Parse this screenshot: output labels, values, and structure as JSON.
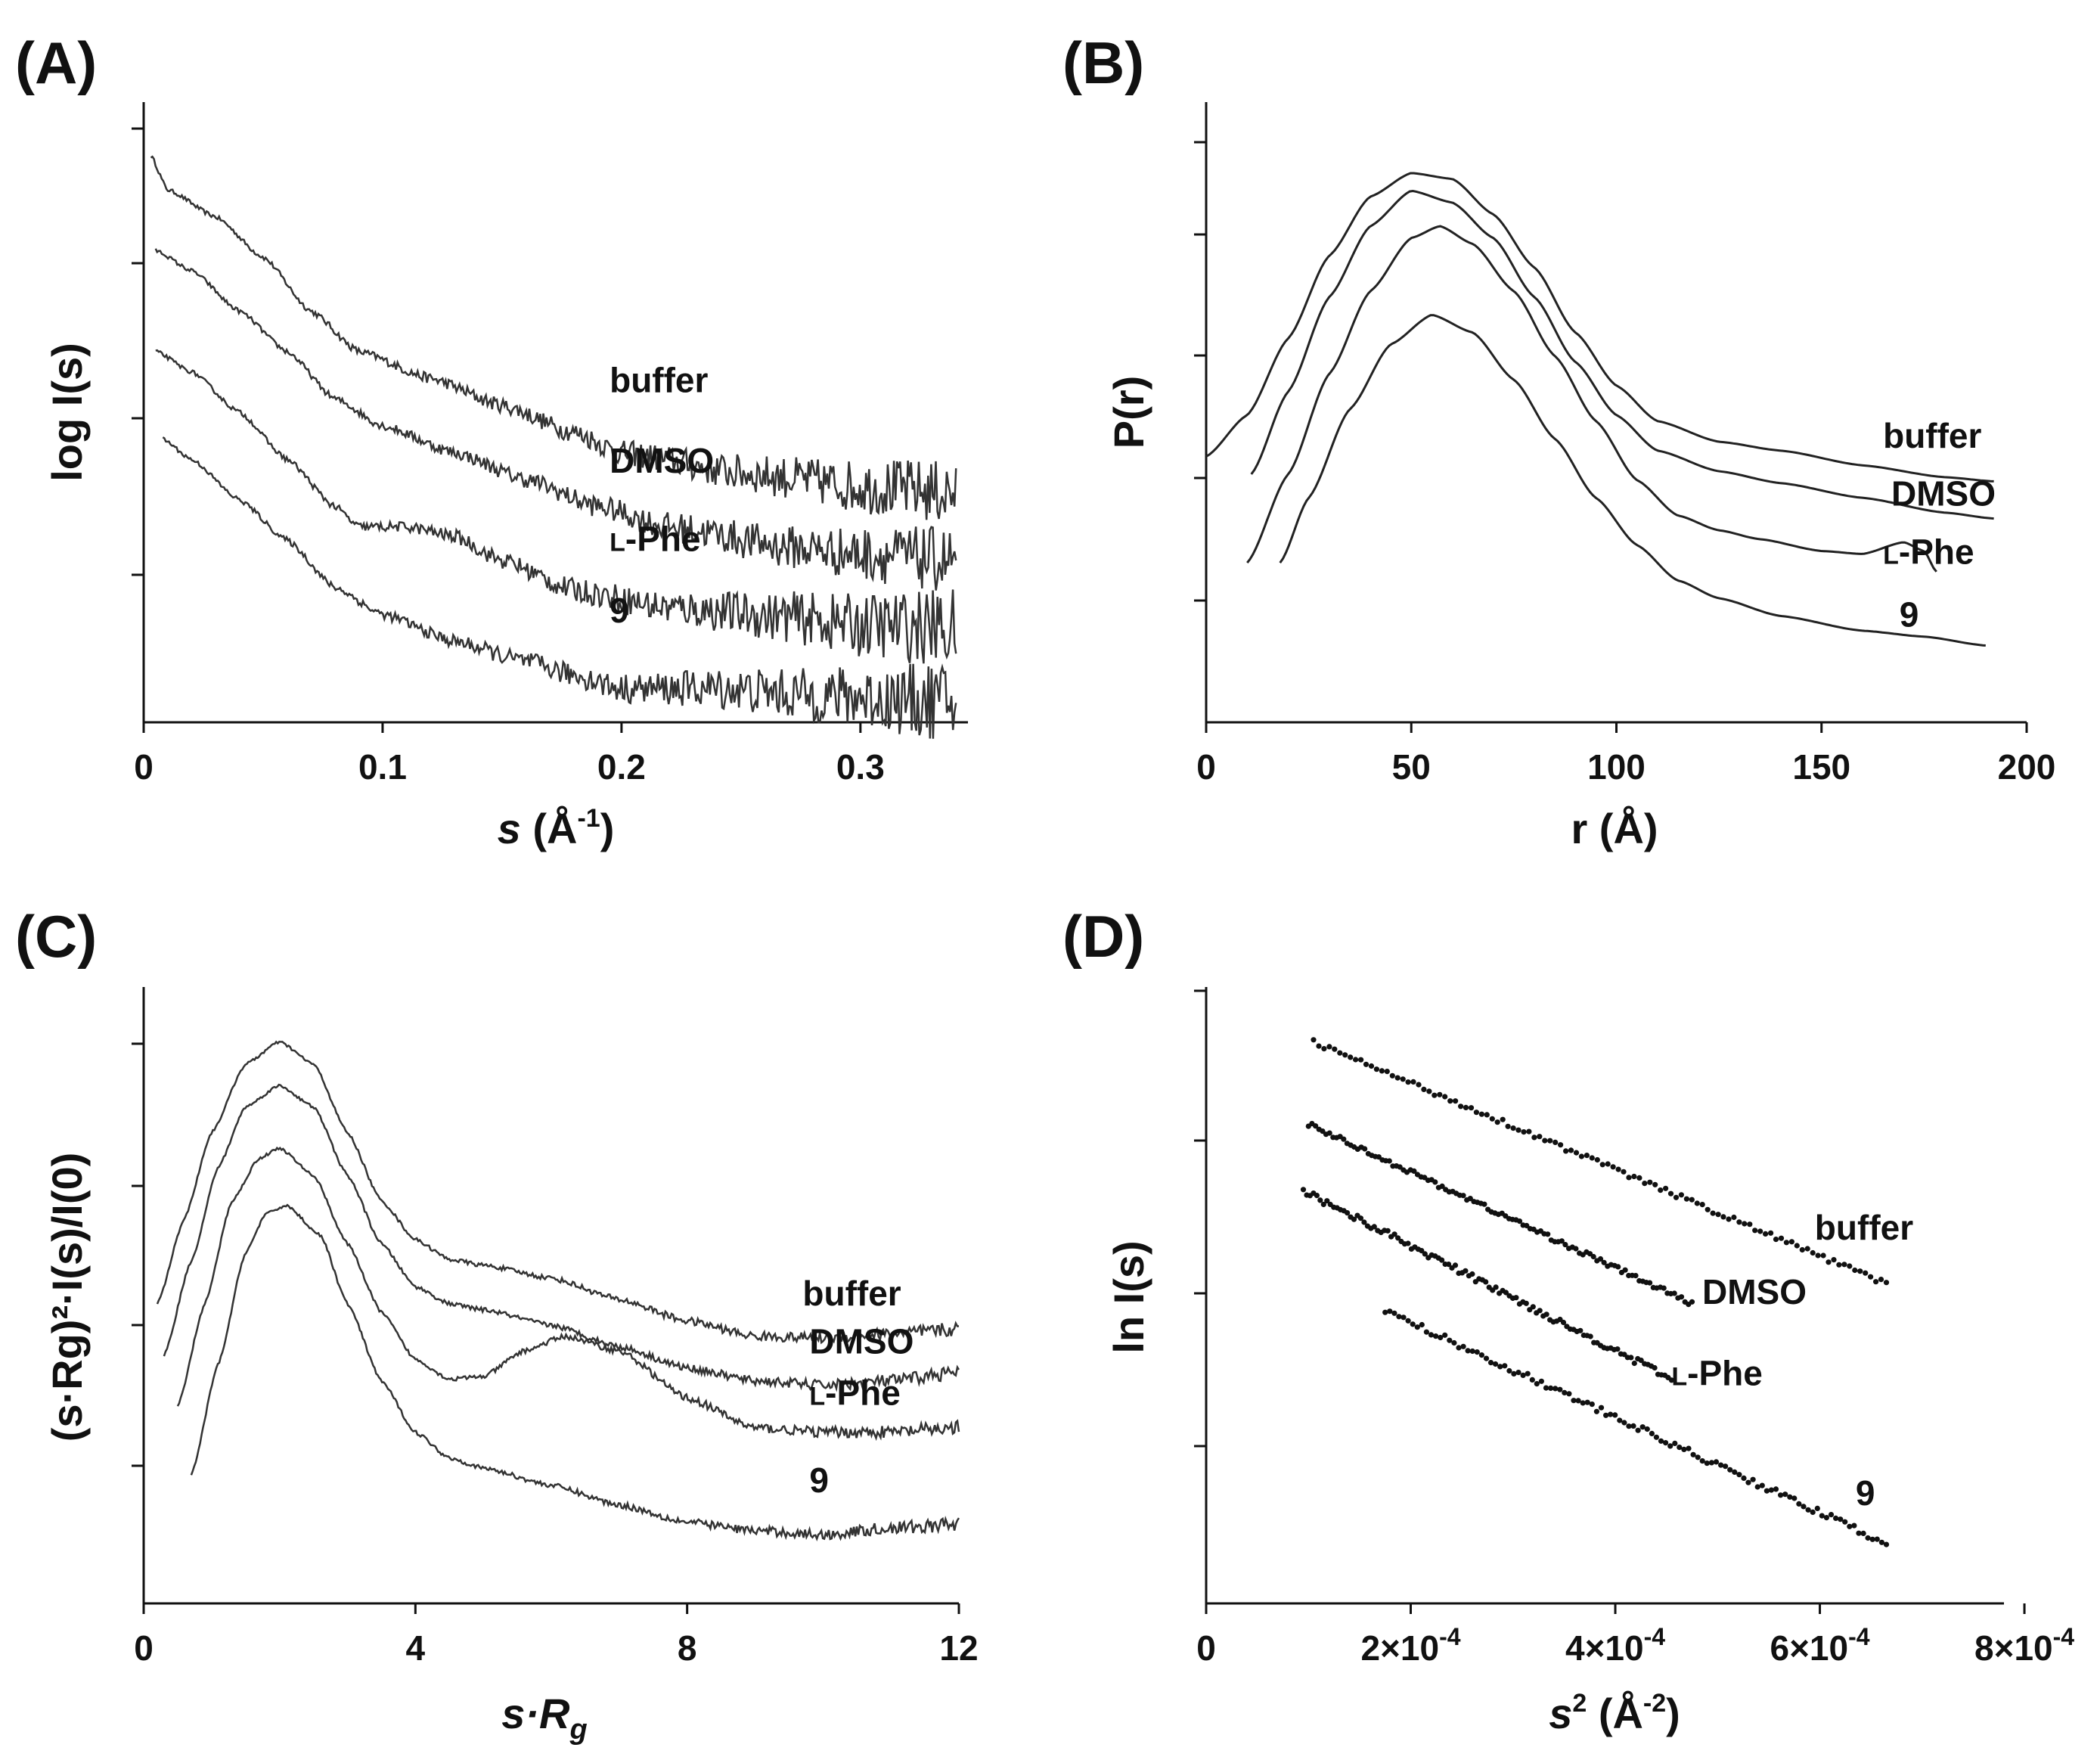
{
  "chart_data": [
    {
      "panel": "(A)",
      "type": "line",
      "xlabel_italic": "s",
      "xlabel_rest": " (Å",
      "xlabel_sup": "-1",
      "xlabel_close": ")",
      "ylabel": "log I(s)",
      "xlim": [
        0,
        0.345
      ],
      "x_ticks": [
        "0",
        "0.1",
        "0.2",
        "0.3"
      ],
      "x_tick_values": [
        0,
        0.1,
        0.2,
        0.3
      ],
      "y_ticks_count": 4,
      "series": [
        {
          "name": "buffer",
          "noise": 0.25,
          "points": [
            [
              0.003,
              4.2
            ],
            [
              0.01,
              3.95
            ],
            [
              0.03,
              3.75
            ],
            [
              0.05,
              3.45
            ],
            [
              0.07,
              3.05
            ],
            [
              0.09,
              2.75
            ],
            [
              0.12,
              2.55
            ],
            [
              0.15,
              2.35
            ],
            [
              0.18,
              2.15
            ],
            [
              0.2,
              2.0
            ],
            [
              0.25,
              1.85
            ],
            [
              0.3,
              1.75
            ],
            [
              0.34,
              1.7
            ]
          ]
        },
        {
          "name": "DMSO",
          "noise": 0.25,
          "points": [
            [
              0.005,
              3.5
            ],
            [
              0.02,
              3.35
            ],
            [
              0.04,
              3.05
            ],
            [
              0.06,
              2.75
            ],
            [
              0.08,
              2.4
            ],
            [
              0.1,
              2.2
            ],
            [
              0.13,
              2.0
            ],
            [
              0.16,
              1.8
            ],
            [
              0.19,
              1.6
            ],
            [
              0.22,
              1.45
            ],
            [
              0.27,
              1.3
            ],
            [
              0.3,
              1.25
            ],
            [
              0.34,
              1.2
            ]
          ]
        },
        {
          "name": "L-Phe",
          "noise": 0.3,
          "points": [
            [
              0.005,
              2.75
            ],
            [
              0.02,
              2.6
            ],
            [
              0.04,
              2.3
            ],
            [
              0.06,
              1.95
            ],
            [
              0.08,
              1.6
            ],
            [
              0.09,
              1.45
            ],
            [
              0.11,
              1.45
            ],
            [
              0.13,
              1.38
            ],
            [
              0.15,
              1.2
            ],
            [
              0.18,
              0.98
            ],
            [
              0.22,
              0.85
            ],
            [
              0.27,
              0.78
            ],
            [
              0.3,
              0.72
            ],
            [
              0.34,
              0.7
            ]
          ]
        },
        {
          "name": "9",
          "noise": 0.3,
          "points": [
            [
              0.008,
              2.1
            ],
            [
              0.02,
              1.95
            ],
            [
              0.04,
              1.65
            ],
            [
              0.06,
              1.35
            ],
            [
              0.08,
              1.0
            ],
            [
              0.1,
              0.8
            ],
            [
              0.13,
              0.6
            ],
            [
              0.16,
              0.45
            ],
            [
              0.18,
              0.35
            ],
            [
              0.2,
              0.25
            ],
            [
              0.24,
              0.25
            ],
            [
              0.28,
              0.2
            ],
            [
              0.34,
              0.15
            ]
          ]
        }
      ],
      "labels": [
        {
          "text": "buffer",
          "x": 0.195,
          "y": 2.45
        },
        {
          "text": "DMSO",
          "x": 0.195,
          "y": 1.85
        },
        {
          "text": "Phe",
          "prefix": "L",
          "x": 0.195,
          "y": 1.27
        },
        {
          "text": "9",
          "x": 0.195,
          "y": 0.74
        }
      ]
    },
    {
      "panel": "(B)",
      "type": "line",
      "xlabel": "r (Å)",
      "ylabel": "P(r)",
      "xlim": [
        0,
        200
      ],
      "x_ticks": [
        "0",
        "50",
        "100",
        "150",
        "200"
      ],
      "x_tick_values": [
        0,
        50,
        100,
        150,
        200
      ],
      "y_ticks_count": 5,
      "series": [
        {
          "name": "buffer",
          "points": [
            [
              0,
              4.5
            ],
            [
              10,
              5.2
            ],
            [
              20,
              6.5
            ],
            [
              30,
              7.9
            ],
            [
              40,
              8.9
            ],
            [
              50,
              9.3
            ],
            [
              60,
              9.2
            ],
            [
              70,
              8.6
            ],
            [
              80,
              7.7
            ],
            [
              90,
              6.6
            ],
            [
              100,
              5.7
            ],
            [
              110,
              5.1
            ],
            [
              125,
              4.75
            ],
            [
              140,
              4.6
            ],
            [
              160,
              4.35
            ],
            [
              180,
              4.15
            ],
            [
              192,
              4.08
            ]
          ]
        },
        {
          "name": "DMSO",
          "points": [
            [
              11,
              4.2
            ],
            [
              20,
              5.6
            ],
            [
              30,
              7.2
            ],
            [
              40,
              8.4
            ],
            [
              50,
              9.0
            ],
            [
              60,
              8.8
            ],
            [
              70,
              8.2
            ],
            [
              80,
              7.2
            ],
            [
              90,
              6.1
            ],
            [
              100,
              5.2
            ],
            [
              110,
              4.6
            ],
            [
              125,
              4.25
            ],
            [
              140,
              4.05
            ],
            [
              160,
              3.8
            ],
            [
              180,
              3.55
            ],
            [
              192,
              3.45
            ]
          ]
        },
        {
          "name": "L-Phe",
          "points": [
            [
              10,
              2.7
            ],
            [
              20,
              4.2
            ],
            [
              30,
              5.9
            ],
            [
              40,
              7.3
            ],
            [
              50,
              8.2
            ],
            [
              57,
              8.4
            ],
            [
              65,
              8.1
            ],
            [
              75,
              7.3
            ],
            [
              85,
              6.2
            ],
            [
              95,
              5.1
            ],
            [
              105,
              4.1
            ],
            [
              115,
              3.5
            ],
            [
              125,
              3.25
            ],
            [
              135,
              3.1
            ],
            [
              150,
              2.9
            ],
            [
              160,
              2.85
            ],
            [
              170,
              3.05
            ],
            [
              175,
              2.9
            ],
            [
              178,
              2.55
            ]
          ]
        },
        {
          "name": "9",
          "points": [
            [
              18,
              2.7
            ],
            [
              25,
              3.8
            ],
            [
              35,
              5.3
            ],
            [
              45,
              6.4
            ],
            [
              55,
              6.9
            ],
            [
              65,
              6.6
            ],
            [
              75,
              5.8
            ],
            [
              85,
              4.8
            ],
            [
              95,
              3.8
            ],
            [
              105,
              3.0
            ],
            [
              115,
              2.4
            ],
            [
              125,
              2.1
            ],
            [
              140,
              1.8
            ],
            [
              160,
              1.55
            ],
            [
              175,
              1.45
            ],
            [
              190,
              1.3
            ]
          ]
        }
      ],
      "labels": [
        {
          "text": "buffer",
          "x": 165,
          "y": 4.65
        },
        {
          "text": "DMSO",
          "x": 167,
          "y": 3.67
        },
        {
          "text": "Phe",
          "prefix": "L",
          "x": 165,
          "y": 2.68
        },
        {
          "text": "9",
          "x": 169,
          "y": 1.62
        }
      ]
    },
    {
      "panel": "(C)",
      "type": "line",
      "xlabel_italic": "s·R",
      "xlabel_sub": "g",
      "ylabel": "(s·Rg)²·I(s)/I(0)",
      "xlim": [
        0,
        12
      ],
      "x_ticks": [
        "0",
        "4",
        "8",
        "12"
      ],
      "x_tick_values": [
        0,
        4,
        8,
        12
      ],
      "y_ticks_count": 4,
      "series": [
        {
          "name": "buffer",
          "noise": 0.07,
          "points": [
            [
              0.2,
              3.0
            ],
            [
              0.6,
              4.0
            ],
            [
              1.0,
              5.0
            ],
            [
              1.5,
              5.8
            ],
            [
              2.0,
              6.06
            ],
            [
              2.5,
              5.8
            ],
            [
              3.0,
              5.0
            ],
            [
              3.5,
              4.2
            ],
            [
              4.0,
              3.75
            ],
            [
              4.5,
              3.52
            ],
            [
              5.0,
              3.45
            ],
            [
              6.0,
              3.3
            ],
            [
              7.0,
              3.05
            ],
            [
              8.0,
              2.8
            ],
            [
              9.0,
              2.62
            ],
            [
              10.0,
              2.6
            ],
            [
              11.0,
              2.65
            ],
            [
              12.0,
              2.7
            ]
          ]
        },
        {
          "name": "DMSO",
          "noise": 0.07,
          "points": [
            [
              0.3,
              2.4
            ],
            [
              0.7,
              3.5
            ],
            [
              1.1,
              4.6
            ],
            [
              1.5,
              5.3
            ],
            [
              2.0,
              5.55
            ],
            [
              2.5,
              5.3
            ],
            [
              3.0,
              4.5
            ],
            [
              3.5,
              3.7
            ],
            [
              4.0,
              3.2
            ],
            [
              4.5,
              3.0
            ],
            [
              5.0,
              2.93
            ],
            [
              6.0,
              2.75
            ],
            [
              7.0,
              2.5
            ],
            [
              8.0,
              2.25
            ],
            [
              9.0,
              2.1
            ],
            [
              10.0,
              2.05
            ],
            [
              11.0,
              2.1
            ],
            [
              12.0,
              2.2
            ]
          ]
        },
        {
          "name": "L-Phe",
          "noise": 0.07,
          "points": [
            [
              0.5,
              1.8
            ],
            [
              0.9,
              3.0
            ],
            [
              1.3,
              4.2
            ],
            [
              1.7,
              4.7
            ],
            [
              2.0,
              4.82
            ],
            [
              2.5,
              4.5
            ],
            [
              3.0,
              3.7
            ],
            [
              3.5,
              2.9
            ],
            [
              4.0,
              2.35
            ],
            [
              4.5,
              2.12
            ],
            [
              5.0,
              2.15
            ],
            [
              5.6,
              2.45
            ],
            [
              6.2,
              2.62
            ],
            [
              7.0,
              2.45
            ],
            [
              8.0,
              1.9
            ],
            [
              9.0,
              1.55
            ],
            [
              10.0,
              1.5
            ],
            [
              11.0,
              1.5
            ],
            [
              12.0,
              1.55
            ]
          ]
        },
        {
          "name": "9",
          "noise": 0.07,
          "points": [
            [
              0.7,
              1.0
            ],
            [
              1.1,
              2.3
            ],
            [
              1.5,
              3.6
            ],
            [
              1.8,
              4.05
            ],
            [
              2.1,
              4.15
            ],
            [
              2.6,
              3.8
            ],
            [
              3.0,
              3.0
            ],
            [
              3.5,
              2.1
            ],
            [
              4.0,
              1.5
            ],
            [
              4.5,
              1.2
            ],
            [
              5.0,
              1.08
            ],
            [
              6.0,
              0.88
            ],
            [
              7.0,
              0.65
            ],
            [
              8.0,
              0.45
            ],
            [
              9.0,
              0.35
            ],
            [
              10.0,
              0.3
            ],
            [
              11.0,
              0.38
            ],
            [
              12.0,
              0.42
            ]
          ]
        }
      ],
      "labels": [
        {
          "text": "buffer",
          "x": 9.7,
          "y": 2.98
        },
        {
          "text": "DMSO",
          "x": 9.8,
          "y": 2.42
        },
        {
          "text": "Phe",
          "prefix": "L",
          "x": 9.8,
          "y": 1.82
        },
        {
          "text": "9",
          "x": 9.8,
          "y": 0.8
        }
      ]
    },
    {
      "panel": "(D)",
      "type": "scatter",
      "xlabel_italic": "s",
      "xlabel_sup": "2",
      "xlabel_rest": " (Å",
      "xlabel_sup2": "-2",
      "xlabel_close": ")",
      "ylabel": "ln I(s)",
      "xlim": [
        0,
        0.00078
      ],
      "x_tick_values": [
        0,
        0.0002,
        0.0004,
        0.0006,
        0.0008
      ],
      "x_ticks": [
        {
          "mant": "0",
          "exp": ""
        },
        {
          "mant": "2×10",
          "exp": "-4"
        },
        {
          "mant": "4×10",
          "exp": "-4"
        },
        {
          "mant": "6×10",
          "exp": "-4"
        },
        {
          "mant": "8×10",
          "exp": "-4"
        }
      ],
      "y_ticks_count": 5,
      "series": [
        {
          "name": "buffer",
          "x_range": [
            0.000105,
            0.000665
          ],
          "y_range": [
            6.56,
            3.73
          ],
          "noise": 0.03
        },
        {
          "name": "DMSO",
          "x_range": [
            0.0001,
            0.000475
          ],
          "y_range": [
            5.6,
            3.5
          ],
          "noise": 0.03
        },
        {
          "name": "L-Phe",
          "x_range": [
            9.5e-05,
            0.000455
          ],
          "y_range": [
            4.82,
            2.62
          ],
          "noise": 0.04
        },
        {
          "name": "9",
          "x_range": [
            0.000175,
            0.000665
          ],
          "y_range": [
            3.42,
            0.7
          ],
          "noise": 0.04
        }
      ],
      "labels": [
        {
          "text": "buffer",
          "x": 0.000595,
          "y": 4.25
        },
        {
          "text": "DMSO",
          "x": 0.000485,
          "y": 3.5
        },
        {
          "text": "Phe",
          "prefix": "L",
          "x": 0.000455,
          "y": 2.55
        },
        {
          "text": "9",
          "x": 0.000635,
          "y": 1.15
        }
      ]
    }
  ]
}
